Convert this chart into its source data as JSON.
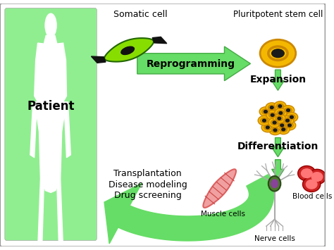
{
  "bg_color": "#ffffff",
  "green_bg": "#90EE90",
  "arrow_green": "#66DD66",
  "arrow_green_dark": "#44AA44",
  "text_patient": "Patient",
  "text_somatic": "Somatic cell",
  "text_pluripotent": "Pluritpotent stem cell",
  "text_reprogramming": "Reprogramming",
  "text_expansion": "Expansion",
  "text_differentiation": "Differentiation",
  "text_transplantation": "Transplantation",
  "text_disease": "Disease modeling",
  "text_drug": "Drug screening",
  "text_muscle": "Muscle cells",
  "text_nerve": "Nerve cells",
  "text_blood": "Blood cells",
  "cell_yellow": "#F5B800",
  "cell_dark": "#1a1a1a",
  "cell_ring": "#CC8800",
  "muscle_pink": "#F0A0A0",
  "muscle_red": "#DD6060",
  "muscle_stripe": "#CC4444",
  "blood_red": "#CC2222",
  "blood_pink": "#FF7777",
  "nerve_green": "#4E7A2E",
  "nerve_yellow": "#CCBB22",
  "nerve_purple": "#884499",
  "somatic_green": "#88DD00",
  "somatic_dark": "#111111",
  "border_color": "#999999"
}
